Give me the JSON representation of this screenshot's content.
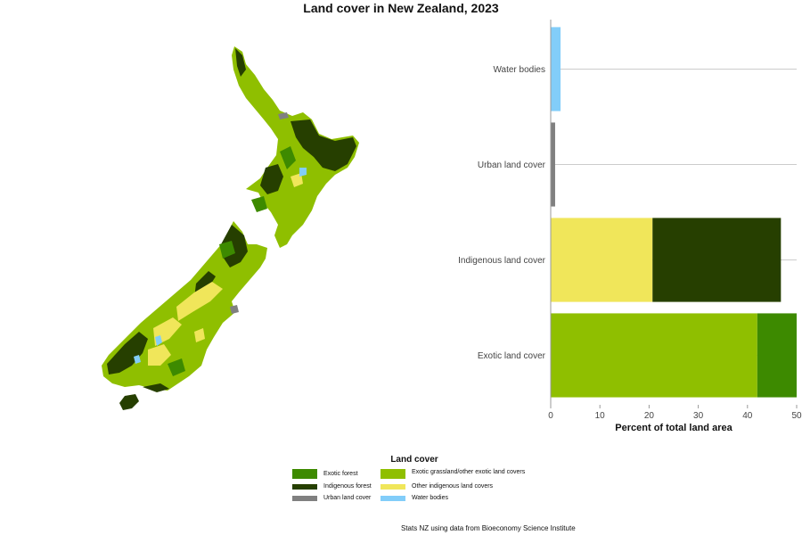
{
  "title": "Land cover in New Zealand, 2023",
  "source": "Stats NZ using data from Bioeconomy Science Institute",
  "colors": {
    "exotic_forest": "#3d8a00",
    "exotic_grassland": "#8fbf00",
    "indigenous_forest": "#263f00",
    "other_indigenous": "#f0e65a",
    "urban": "#808080",
    "water": "#82cdf9"
  },
  "legend": {
    "title": "Land cover",
    "items": [
      {
        "label": "Exotic forest",
        "color": "#3d8a00"
      },
      {
        "label": "Exotic grassland/other exotic land covers",
        "color": "#8fbf00"
      },
      {
        "label": "Indigenous forest",
        "color": "#263f00"
      },
      {
        "label": "Other indigenous land covers",
        "color": "#f0e65a"
      },
      {
        "label": "Urban land cover",
        "color": "#808080"
      },
      {
        "label": "Water bodies",
        "color": "#82cdf9"
      }
    ]
  },
  "chart_data": {
    "type": "bar",
    "orientation": "horizontal",
    "stacked": true,
    "categories": [
      "Water bodies",
      "Urban land cover",
      "Indigenous land cover",
      "Exotic land cover"
    ],
    "series": [
      {
        "name": "Water bodies",
        "color": "#82cdf9",
        "values": [
          2.0,
          0,
          0,
          0
        ]
      },
      {
        "name": "Urban land cover",
        "color": "#808080",
        "values": [
          0,
          0.9,
          0,
          0
        ]
      },
      {
        "name": "Other indigenous land covers",
        "color": "#f0e65a",
        "values": [
          0,
          0,
          20.7,
          0
        ]
      },
      {
        "name": "Indigenous forest",
        "color": "#263f00",
        "values": [
          0,
          0,
          26.1,
          0
        ]
      },
      {
        "name": "Exotic grassland/other exotic land covers",
        "color": "#8fbf00",
        "values": [
          0,
          0,
          0,
          42.0
        ]
      },
      {
        "name": "Exotic forest",
        "color": "#3d8a00",
        "values": [
          0,
          0,
          0,
          8.0
        ]
      }
    ],
    "xlabel": "Percent of total land area",
    "ylabel": "",
    "xlim": [
      0,
      50
    ],
    "xticks": [
      0,
      10,
      20,
      30,
      40,
      50
    ],
    "grid": "horizontal"
  }
}
